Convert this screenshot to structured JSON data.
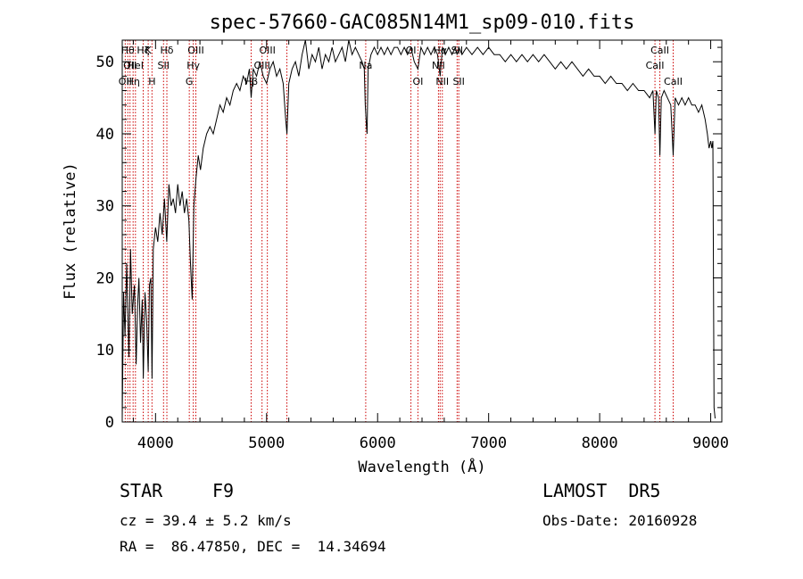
{
  "chart_data": {
    "type": "line",
    "title": "spec-57660-GAC085N14M1_sp09-010.fits",
    "xlabel": "Wavelength (Å)",
    "ylabel": "Flux (relative)",
    "xlim": [
      3700,
      9100
    ],
    "ylim": [
      0,
      53
    ],
    "xticks": [
      4000,
      5000,
      6000,
      7000,
      8000,
      9000
    ],
    "yticks": [
      0,
      10,
      20,
      30,
      40,
      50
    ],
    "grid": false,
    "line_color": "#000000",
    "marker_color": "#cc0000",
    "spectrum": [
      {
        "x": 3700,
        "y": 0.5
      },
      {
        "x": 3712,
        "y": 18
      },
      {
        "x": 3725,
        "y": 12
      },
      {
        "x": 3740,
        "y": 22
      },
      {
        "x": 3760,
        "y": 9
      },
      {
        "x": 3775,
        "y": 24
      },
      {
        "x": 3790,
        "y": 15
      },
      {
        "x": 3810,
        "y": 19
      },
      {
        "x": 3825,
        "y": 8
      },
      {
        "x": 3838,
        "y": 16
      },
      {
        "x": 3850,
        "y": 20
      },
      {
        "x": 3865,
        "y": 11
      },
      {
        "x": 3880,
        "y": 17
      },
      {
        "x": 3890,
        "y": 6
      },
      {
        "x": 3905,
        "y": 18
      },
      {
        "x": 3920,
        "y": 14
      },
      {
        "x": 3934,
        "y": 7
      },
      {
        "x": 3945,
        "y": 19
      },
      {
        "x": 3958,
        "y": 20
      },
      {
        "x": 3968,
        "y": 6
      },
      {
        "x": 3980,
        "y": 24
      },
      {
        "x": 4000,
        "y": 27
      },
      {
        "x": 4020,
        "y": 25
      },
      {
        "x": 4040,
        "y": 29
      },
      {
        "x": 4060,
        "y": 26
      },
      {
        "x": 4080,
        "y": 31
      },
      {
        "x": 4101,
        "y": 25
      },
      {
        "x": 4120,
        "y": 33
      },
      {
        "x": 4140,
        "y": 30
      },
      {
        "x": 4160,
        "y": 31
      },
      {
        "x": 4180,
        "y": 29
      },
      {
        "x": 4200,
        "y": 33
      },
      {
        "x": 4220,
        "y": 30
      },
      {
        "x": 4240,
        "y": 32
      },
      {
        "x": 4260,
        "y": 29
      },
      {
        "x": 4280,
        "y": 31
      },
      {
        "x": 4300,
        "y": 28
      },
      {
        "x": 4315,
        "y": 22
      },
      {
        "x": 4330,
        "y": 17
      },
      {
        "x": 4345,
        "y": 30
      },
      {
        "x": 4365,
        "y": 34
      },
      {
        "x": 4385,
        "y": 37
      },
      {
        "x": 4405,
        "y": 35
      },
      {
        "x": 4430,
        "y": 38
      },
      {
        "x": 4460,
        "y": 40
      },
      {
        "x": 4490,
        "y": 41
      },
      {
        "x": 4520,
        "y": 40
      },
      {
        "x": 4550,
        "y": 42
      },
      {
        "x": 4580,
        "y": 44
      },
      {
        "x": 4610,
        "y": 43
      },
      {
        "x": 4640,
        "y": 45
      },
      {
        "x": 4670,
        "y": 44
      },
      {
        "x": 4700,
        "y": 46
      },
      {
        "x": 4730,
        "y": 47
      },
      {
        "x": 4760,
        "y": 46
      },
      {
        "x": 4790,
        "y": 48
      },
      {
        "x": 4820,
        "y": 47
      },
      {
        "x": 4845,
        "y": 49
      },
      {
        "x": 4861,
        "y": 45
      },
      {
        "x": 4880,
        "y": 49
      },
      {
        "x": 4910,
        "y": 48
      },
      {
        "x": 4940,
        "y": 50
      },
      {
        "x": 4970,
        "y": 48
      },
      {
        "x": 5000,
        "y": 47
      },
      {
        "x": 5030,
        "y": 49
      },
      {
        "x": 5060,
        "y": 50
      },
      {
        "x": 5090,
        "y": 48
      },
      {
        "x": 5120,
        "y": 49
      },
      {
        "x": 5150,
        "y": 47
      },
      {
        "x": 5172,
        "y": 42
      },
      {
        "x": 5183,
        "y": 40
      },
      {
        "x": 5200,
        "y": 47
      },
      {
        "x": 5230,
        "y": 49
      },
      {
        "x": 5260,
        "y": 50
      },
      {
        "x": 5290,
        "y": 48
      },
      {
        "x": 5320,
        "y": 51
      },
      {
        "x": 5350,
        "y": 53
      },
      {
        "x": 5380,
        "y": 49
      },
      {
        "x": 5410,
        "y": 51
      },
      {
        "x": 5440,
        "y": 50
      },
      {
        "x": 5470,
        "y": 52
      },
      {
        "x": 5500,
        "y": 49
      },
      {
        "x": 5530,
        "y": 51
      },
      {
        "x": 5560,
        "y": 50
      },
      {
        "x": 5590,
        "y": 52
      },
      {
        "x": 5620,
        "y": 50
      },
      {
        "x": 5650,
        "y": 51
      },
      {
        "x": 5680,
        "y": 52
      },
      {
        "x": 5710,
        "y": 50
      },
      {
        "x": 5740,
        "y": 53
      },
      {
        "x": 5770,
        "y": 51
      },
      {
        "x": 5800,
        "y": 52
      },
      {
        "x": 5830,
        "y": 51
      },
      {
        "x": 5860,
        "y": 50
      },
      {
        "x": 5880,
        "y": 49
      },
      {
        "x": 5889,
        "y": 44
      },
      {
        "x": 5896,
        "y": 42
      },
      {
        "x": 5905,
        "y": 40
      },
      {
        "x": 5915,
        "y": 49
      },
      {
        "x": 5940,
        "y": 51
      },
      {
        "x": 5970,
        "y": 52
      },
      {
        "x": 6000,
        "y": 51
      },
      {
        "x": 6030,
        "y": 52
      },
      {
        "x": 6060,
        "y": 51
      },
      {
        "x": 6090,
        "y": 52
      },
      {
        "x": 6120,
        "y": 51
      },
      {
        "x": 6150,
        "y": 52
      },
      {
        "x": 6180,
        "y": 52
      },
      {
        "x": 6210,
        "y": 51
      },
      {
        "x": 6240,
        "y": 52
      },
      {
        "x": 6270,
        "y": 51
      },
      {
        "x": 6300,
        "y": 52
      },
      {
        "x": 6330,
        "y": 50
      },
      {
        "x": 6363,
        "y": 49
      },
      {
        "x": 6390,
        "y": 52
      },
      {
        "x": 6420,
        "y": 51
      },
      {
        "x": 6450,
        "y": 52
      },
      {
        "x": 6480,
        "y": 51
      },
      {
        "x": 6510,
        "y": 52
      },
      {
        "x": 6540,
        "y": 51
      },
      {
        "x": 6563,
        "y": 48
      },
      {
        "x": 6585,
        "y": 52
      },
      {
        "x": 6610,
        "y": 51
      },
      {
        "x": 6640,
        "y": 52
      },
      {
        "x": 6670,
        "y": 51
      },
      {
        "x": 6700,
        "y": 52
      },
      {
        "x": 6716,
        "y": 51
      },
      {
        "x": 6731,
        "y": 52
      },
      {
        "x": 6760,
        "y": 51
      },
      {
        "x": 6800,
        "y": 52
      },
      {
        "x": 6850,
        "y": 51
      },
      {
        "x": 6900,
        "y": 52
      },
      {
        "x": 6950,
        "y": 51
      },
      {
        "x": 7000,
        "y": 52
      },
      {
        "x": 7050,
        "y": 51
      },
      {
        "x": 7100,
        "y": 51
      },
      {
        "x": 7150,
        "y": 50
      },
      {
        "x": 7200,
        "y": 51
      },
      {
        "x": 7250,
        "y": 50
      },
      {
        "x": 7300,
        "y": 51
      },
      {
        "x": 7350,
        "y": 50
      },
      {
        "x": 7400,
        "y": 51
      },
      {
        "x": 7450,
        "y": 50
      },
      {
        "x": 7500,
        "y": 51
      },
      {
        "x": 7550,
        "y": 50
      },
      {
        "x": 7600,
        "y": 49
      },
      {
        "x": 7650,
        "y": 50
      },
      {
        "x": 7700,
        "y": 49
      },
      {
        "x": 7750,
        "y": 50
      },
      {
        "x": 7800,
        "y": 49
      },
      {
        "x": 7850,
        "y": 48
      },
      {
        "x": 7900,
        "y": 49
      },
      {
        "x": 7950,
        "y": 48
      },
      {
        "x": 8000,
        "y": 48
      },
      {
        "x": 8050,
        "y": 47
      },
      {
        "x": 8100,
        "y": 48
      },
      {
        "x": 8150,
        "y": 47
      },
      {
        "x": 8200,
        "y": 47
      },
      {
        "x": 8250,
        "y": 46
      },
      {
        "x": 8300,
        "y": 47
      },
      {
        "x": 8350,
        "y": 46
      },
      {
        "x": 8400,
        "y": 46
      },
      {
        "x": 8450,
        "y": 45
      },
      {
        "x": 8480,
        "y": 46
      },
      {
        "x": 8498,
        "y": 40
      },
      {
        "x": 8510,
        "y": 46
      },
      {
        "x": 8530,
        "y": 45
      },
      {
        "x": 8542,
        "y": 37
      },
      {
        "x": 8555,
        "y": 45
      },
      {
        "x": 8580,
        "y": 46
      },
      {
        "x": 8610,
        "y": 45
      },
      {
        "x": 8640,
        "y": 44
      },
      {
        "x": 8662,
        "y": 37
      },
      {
        "x": 8680,
        "y": 45
      },
      {
        "x": 8710,
        "y": 44
      },
      {
        "x": 8740,
        "y": 45
      },
      {
        "x": 8770,
        "y": 44
      },
      {
        "x": 8800,
        "y": 45
      },
      {
        "x": 8830,
        "y": 44
      },
      {
        "x": 8860,
        "y": 44
      },
      {
        "x": 8890,
        "y": 43
      },
      {
        "x": 8920,
        "y": 44
      },
      {
        "x": 8950,
        "y": 42
      },
      {
        "x": 8970,
        "y": 40
      },
      {
        "x": 8985,
        "y": 38
      },
      {
        "x": 9000,
        "y": 39
      },
      {
        "x": 9010,
        "y": 38
      },
      {
        "x": 9020,
        "y": 39
      },
      {
        "x": 9030,
        "y": 2
      },
      {
        "x": 9040,
        "y": 0.5
      }
    ],
    "line_markers": [
      {
        "wave": 3727,
        "label": "OII",
        "row": 2
      },
      {
        "wave": 3750,
        "label": "Hθ",
        "row": 0
      },
      {
        "wave": 3770,
        "label": "OII",
        "row": 1
      },
      {
        "wave": 3798,
        "label": "Hη",
        "row": 2
      },
      {
        "wave": 3819,
        "label": "HeI",
        "row": 1
      },
      {
        "wave": 3889,
        "label": "Hζ",
        "row": 0
      },
      {
        "wave": 3934,
        "label": "K",
        "row": 0
      },
      {
        "wave": 3968,
        "label": "H",
        "row": 2
      },
      {
        "wave": 4072,
        "label": "SII",
        "row": 1
      },
      {
        "wave": 4102,
        "label": "Hδ",
        "row": 0
      },
      {
        "wave": 4304,
        "label": "G",
        "row": 2
      },
      {
        "wave": 4340,
        "label": "Hγ",
        "row": 1
      },
      {
        "wave": 4363,
        "label": "OIII",
        "row": 0
      },
      {
        "wave": 4861,
        "label": "Hβ",
        "row": 2
      },
      {
        "wave": 4959,
        "label": "OIII",
        "row": 1
      },
      {
        "wave": 5007,
        "label": "OIII",
        "row": 0
      },
      {
        "wave": 5183,
        "label": "",
        "row": 2
      },
      {
        "wave": 5893,
        "label": "Na",
        "row": 1
      },
      {
        "wave": 6300,
        "label": "OI",
        "row": 0
      },
      {
        "wave": 6363,
        "label": "OI",
        "row": 2
      },
      {
        "wave": 6548,
        "label": "NII",
        "row": 1
      },
      {
        "wave": 6563,
        "label": "Hα",
        "row": 0
      },
      {
        "wave": 6583,
        "label": "NII",
        "row": 2
      },
      {
        "wave": 6716,
        "label": "SII",
        "row": 0
      },
      {
        "wave": 6731,
        "label": "SII",
        "row": 2
      },
      {
        "wave": 8498,
        "label": "CaII",
        "row": 1
      },
      {
        "wave": 8542,
        "label": "CaII",
        "row": 0
      },
      {
        "wave": 8662,
        "label": "CaII",
        "row": 2
      }
    ]
  },
  "info": {
    "class": "STAR",
    "subclass": "F9",
    "survey": "LAMOST  DR5",
    "cz": "cz = 39.4 ± 5.2 km/s",
    "obs_date": "Obs-Date: 20160928",
    "radec": "RA =  86.47850, DEC =  14.34694"
  }
}
